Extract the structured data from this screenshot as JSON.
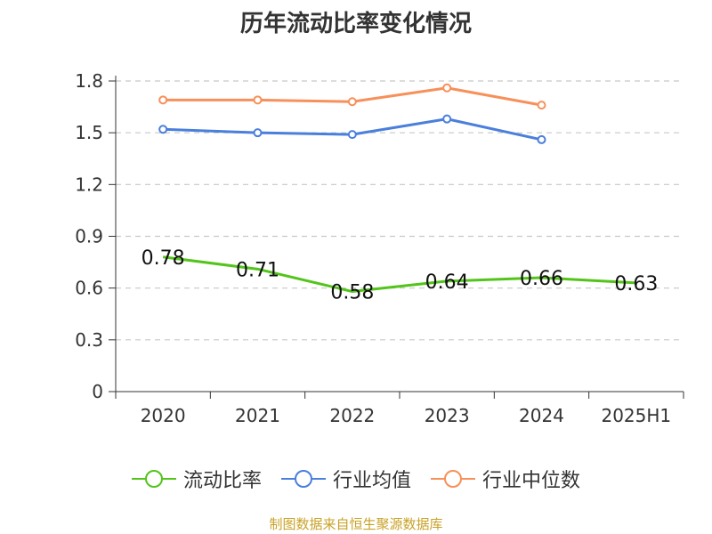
{
  "source_note": "制图数据来自恒生聚源数据库",
  "chart_data": {
    "type": "line",
    "title": "历年流动比率变化情况",
    "categories": [
      "2020",
      "2021",
      "2022",
      "2023",
      "2024",
      "2025H1"
    ],
    "y_ticks": [
      "0",
      "0.3",
      "0.6",
      "0.9",
      "1.2",
      "1.5",
      "1.8"
    ],
    "ylim": [
      0,
      1.8
    ],
    "grid": true,
    "legend_position": "bottom",
    "series": [
      {
        "name": "流动比率",
        "color": "#52c41a",
        "values": [
          0.78,
          0.71,
          0.58,
          0.64,
          0.66,
          0.63
        ],
        "labels": [
          "0.78",
          "0.71",
          "0.58",
          "0.64",
          "0.66",
          "0.63"
        ],
        "show_markers": false
      },
      {
        "name": "行业均值",
        "color": "#4a7fdc",
        "values": [
          1.52,
          1.5,
          1.49,
          1.58,
          1.46,
          null
        ],
        "show_markers": true
      },
      {
        "name": "行业中位数",
        "color": "#f7905a",
        "values": [
          1.69,
          1.69,
          1.68,
          1.76,
          1.66,
          null
        ],
        "show_markers": true
      }
    ]
  }
}
